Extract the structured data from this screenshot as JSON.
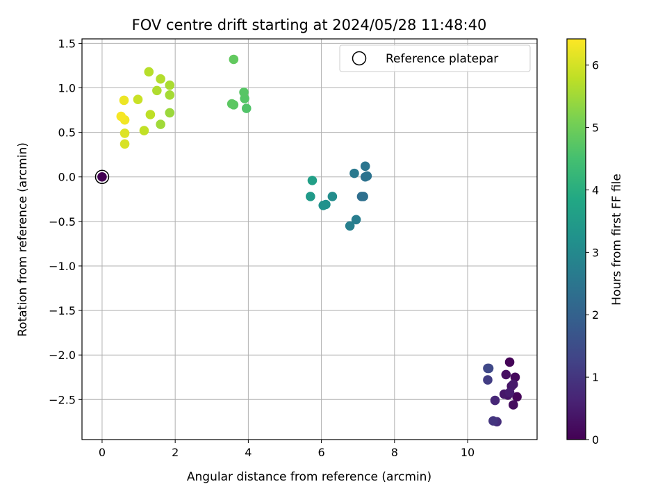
{
  "chart_data": {
    "type": "scatter",
    "title": "FOV centre drift starting at 2024/05/28 11:48:40",
    "xlabel": "Angular distance from reference (arcmin)",
    "ylabel": "Rotation from reference (arcmin)",
    "xlim": [
      -0.55,
      11.9
    ],
    "ylim": [
      -2.95,
      1.55
    ],
    "xticks": [
      0,
      2,
      4,
      6,
      8,
      10
    ],
    "xtick_labels": [
      "0",
      "2",
      "4",
      "6",
      "8",
      "10"
    ],
    "yticks": [
      1.5,
      1.0,
      0.5,
      0.0,
      -0.5,
      -1.0,
      -1.5,
      -2.0,
      -2.5
    ],
    "ytick_labels": [
      "1.5",
      "1.0",
      "0.5",
      "0.0",
      "−0.5",
      "−1.0",
      "−1.5",
      "−2.0",
      "−2.5"
    ],
    "grid": true,
    "colorbar": {
      "label": "Hours from first FF file",
      "min": 0,
      "max": 6.42,
      "ticks": [
        0,
        1,
        2,
        3,
        4,
        5,
        6
      ],
      "tick_labels": [
        "0",
        "1",
        "2",
        "3",
        "4",
        "5",
        "6"
      ],
      "colormap": "viridis"
    },
    "reference": {
      "x": 0,
      "y": 0,
      "hours": 0,
      "label": "Reference platepar"
    },
    "legend": {
      "position": "top-right",
      "entries": [
        "Reference platepar"
      ]
    },
    "points": [
      {
        "x": 11.15,
        "y": -2.08,
        "hours": 0.05
      },
      {
        "x": 11.35,
        "y": -2.47,
        "hours": 0.1
      },
      {
        "x": 11.3,
        "y": -2.25,
        "hours": 0.15
      },
      {
        "x": 11.25,
        "y": -2.56,
        "hours": 0.2
      },
      {
        "x": 11.05,
        "y": -2.22,
        "hours": 0.25
      },
      {
        "x": 11.2,
        "y": -2.35,
        "hours": 0.3
      },
      {
        "x": 11.1,
        "y": -2.45,
        "hours": 0.35
      },
      {
        "x": 11.0,
        "y": -2.44,
        "hours": 0.4
      },
      {
        "x": 11.25,
        "y": -2.33,
        "hours": 0.45
      },
      {
        "x": 11.15,
        "y": -2.42,
        "hours": 0.5
      },
      {
        "x": 10.75,
        "y": -2.51,
        "hours": 0.7
      },
      {
        "x": 10.8,
        "y": -2.75,
        "hours": 0.85
      },
      {
        "x": 10.7,
        "y": -2.74,
        "hours": 1.0
      },
      {
        "x": 10.55,
        "y": -2.28,
        "hours": 1.15
      },
      {
        "x": 10.55,
        "y": -2.15,
        "hours": 1.3
      },
      {
        "x": 10.58,
        "y": -2.15,
        "hours": 1.4
      },
      {
        "x": 7.1,
        "y": -0.22,
        "hours": 2.3
      },
      {
        "x": 7.15,
        "y": -0.22,
        "hours": 2.35
      },
      {
        "x": 7.2,
        "y": 0.0,
        "hours": 2.4
      },
      {
        "x": 7.25,
        "y": 0.01,
        "hours": 2.45
      },
      {
        "x": 7.2,
        "y": 0.12,
        "hours": 2.5
      },
      {
        "x": 6.9,
        "y": 0.04,
        "hours": 2.6
      },
      {
        "x": 6.95,
        "y": -0.48,
        "hours": 2.7
      },
      {
        "x": 6.78,
        "y": -0.55,
        "hours": 2.75
      },
      {
        "x": 6.3,
        "y": -0.22,
        "hours": 3.1
      },
      {
        "x": 6.12,
        "y": -0.31,
        "hours": 3.2
      },
      {
        "x": 6.05,
        "y": -0.32,
        "hours": 3.25
      },
      {
        "x": 5.7,
        "y": -0.22,
        "hours": 3.45
      },
      {
        "x": 5.75,
        "y": -0.04,
        "hours": 3.6
      },
      {
        "x": 3.95,
        "y": 0.77,
        "hours": 4.65
      },
      {
        "x": 3.9,
        "y": 0.88,
        "hours": 4.7
      },
      {
        "x": 3.88,
        "y": 0.95,
        "hours": 4.72
      },
      {
        "x": 3.6,
        "y": 0.81,
        "hours": 4.75
      },
      {
        "x": 3.55,
        "y": 0.82,
        "hours": 4.78
      },
      {
        "x": 3.6,
        "y": 1.32,
        "hours": 4.85
      },
      {
        "x": 1.85,
        "y": 0.72,
        "hours": 5.45
      },
      {
        "x": 1.6,
        "y": 0.59,
        "hours": 5.5
      },
      {
        "x": 1.85,
        "y": 0.92,
        "hours": 5.55
      },
      {
        "x": 1.85,
        "y": 1.03,
        "hours": 5.6
      },
      {
        "x": 1.5,
        "y": 0.97,
        "hours": 5.65
      },
      {
        "x": 1.6,
        "y": 1.1,
        "hours": 5.68
      },
      {
        "x": 1.28,
        "y": 1.18,
        "hours": 5.72
      },
      {
        "x": 1.32,
        "y": 0.7,
        "hours": 5.78
      },
      {
        "x": 1.15,
        "y": 0.52,
        "hours": 5.82
      },
      {
        "x": 0.98,
        "y": 0.87,
        "hours": 5.9
      },
      {
        "x": 0.62,
        "y": 0.37,
        "hours": 6.05
      },
      {
        "x": 0.62,
        "y": 0.49,
        "hours": 6.1
      },
      {
        "x": 0.6,
        "y": 0.86,
        "hours": 6.25
      },
      {
        "x": 0.62,
        "y": 0.64,
        "hours": 6.3
      },
      {
        "x": 0.52,
        "y": 0.68,
        "hours": 6.35
      }
    ]
  }
}
